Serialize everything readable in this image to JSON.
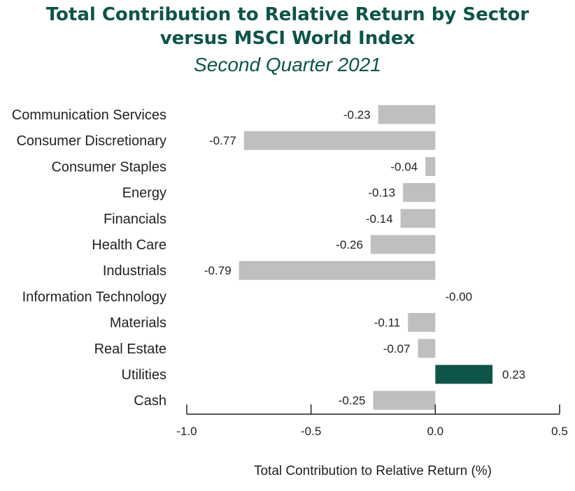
{
  "chart_data": {
    "type": "bar",
    "orientation": "horizontal",
    "title_line1": "Total Contribution to Relative Return by Sector",
    "title_line2": "versus MSCI World Index",
    "subtitle": "Second Quarter 2021",
    "xlabel": "Total Contribution to Relative Return (%)",
    "xlim": [
      -1.0,
      0.5
    ],
    "xticks": [
      "-1.0",
      "-0.5",
      "0.0",
      "0.5"
    ],
    "xtick_values": [
      -1.0,
      -0.5,
      0.0,
      0.5
    ],
    "grid": false,
    "categories": [
      "Communication Services",
      "Consumer Discretionary",
      "Consumer Staples",
      "Energy",
      "Financials",
      "Health Care",
      "Industrials",
      "Information Technology",
      "Materials",
      "Real Estate",
      "Utilities",
      "Cash"
    ],
    "values": [
      -0.23,
      -0.77,
      -0.04,
      -0.13,
      -0.14,
      -0.26,
      -0.79,
      -0.0,
      -0.11,
      -0.07,
      0.23,
      -0.25
    ],
    "value_labels": [
      "-0.23",
      "-0.77",
      "-0.04",
      "-0.13",
      "-0.14",
      "-0.26",
      "-0.79",
      "-0.00",
      "-0.11",
      "-0.07",
      "0.23",
      "-0.25"
    ],
    "colors": {
      "negative": "#bfbfbf",
      "positive": "#0e5449",
      "title": "#0e5449",
      "axis": "#222222"
    }
  }
}
